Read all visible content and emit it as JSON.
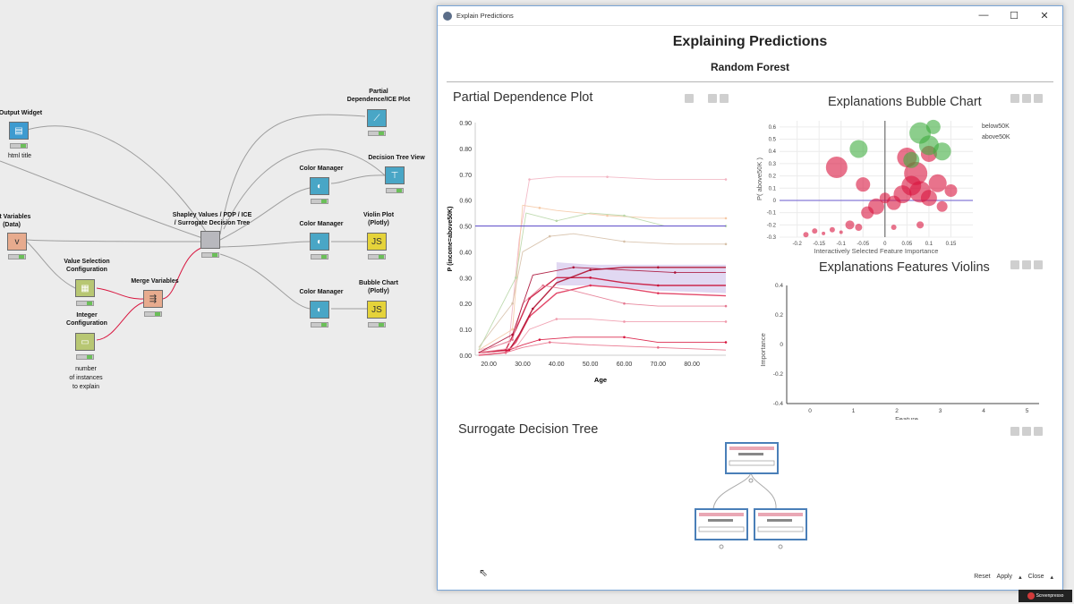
{
  "workflow": {
    "nodes": {
      "output_widget": {
        "label": "Output Widget",
        "sub": "html title"
      },
      "select_variables": {
        "label": "ect Variables\n(Data)"
      },
      "value_selection": {
        "label": "Value Selection\nConfiguration"
      },
      "integer_config": {
        "label": "Integer\nConfiguration",
        "sub": "number\nof instances\nto explain"
      },
      "merge_variables": {
        "label": "Merge Variables"
      },
      "shapley": {
        "label": "Shapley Values / PDP / ICE\n/ Surrogate Decision Tree"
      },
      "pdp_plot": {
        "label": "Partial\nDependence/ICE Plot"
      },
      "color_manager_1": {
        "label": "Color Manager"
      },
      "decision_tree_view": {
        "label": "Decision Tree View"
      },
      "color_manager_2": {
        "label": "Color Manager"
      },
      "violin_plot": {
        "label": "Violin Plot\n(Plotly)"
      },
      "color_manager_3": {
        "label": "Color Manager"
      },
      "bubble_chart": {
        "label": "Bubble Chart\n(Plotly)"
      }
    }
  },
  "dialog": {
    "window_title": "Explain Predictions",
    "title": "Explaining Predictions",
    "subtitle": "Random Forest",
    "controls": {
      "minimize": "—",
      "maximize": "☐",
      "close": "✕"
    },
    "buttons": {
      "reset": "Reset",
      "apply": "Apply",
      "close": "Close"
    }
  },
  "panels": {
    "pdp_title": "Partial Dependence Plot",
    "bubble_title": "Explanations Bubble Chart",
    "violin_title": "Explanations Features Violins",
    "tree_title": "Surrogate Decision Tree"
  },
  "colors": {
    "accent_line": "#6a5acd",
    "above": "#3fae3f",
    "below": "#d8163f"
  },
  "chart_data": [
    {
      "type": "line",
      "title": "Partial Dependence Plot",
      "xlabel": "Age",
      "ylabel": "P (income=above50K)",
      "xlim": [
        16,
        90
      ],
      "ylim": [
        0,
        0.9
      ],
      "xticks": [
        "20.00",
        "30.00",
        "40.00",
        "50.00",
        "60.00",
        "70.00",
        "80.00"
      ],
      "yticks": [
        "0.00",
        "0.10",
        "0.20",
        "0.30",
        "0.40",
        "0.50",
        "0.60",
        "0.70",
        "0.80",
        "0.90"
      ],
      "reference_line": 0.5,
      "series": [
        {
          "values": [
            [
              17,
              0.01
            ],
            [
              25,
              0.02
            ],
            [
              28,
              0.1
            ],
            [
              32,
              0.22
            ],
            [
              40,
              0.3
            ],
            [
              50,
              0.3
            ],
            [
              60,
              0.28
            ],
            [
              70,
              0.27
            ],
            [
              90,
              0.27
            ]
          ]
        },
        {
          "values": [
            [
              17,
              0.0
            ],
            [
              25,
              0.01
            ],
            [
              28,
              0.05
            ],
            [
              32,
              0.15
            ],
            [
              40,
              0.24
            ],
            [
              50,
              0.27
            ],
            [
              60,
              0.26
            ],
            [
              70,
              0.24
            ],
            [
              90,
              0.23
            ]
          ]
        },
        {
          "values": [
            [
              17,
              0.01
            ],
            [
              26,
              0.02
            ],
            [
              29,
              0.08
            ],
            [
              33,
              0.18
            ],
            [
              40,
              0.28
            ],
            [
              50,
              0.33
            ],
            [
              60,
              0.34
            ],
            [
              70,
              0.34
            ],
            [
              90,
              0.34
            ]
          ]
        },
        {
          "values": [
            [
              17,
              0.01
            ],
            [
              26,
              0.02
            ],
            [
              30,
              0.04
            ],
            [
              35,
              0.06
            ],
            [
              45,
              0.07
            ],
            [
              60,
              0.07
            ],
            [
              70,
              0.05
            ],
            [
              90,
              0.05
            ]
          ]
        },
        {
          "values": [
            [
              17,
              0.0
            ],
            [
              25,
              0.01
            ],
            [
              30,
              0.03
            ],
            [
              38,
              0.05
            ],
            [
              50,
              0.04
            ],
            [
              70,
              0.03
            ],
            [
              90,
              0.02
            ]
          ]
        },
        {
          "values": [
            [
              17,
              0.02
            ],
            [
              26,
              0.05
            ],
            [
              29,
              0.45
            ],
            [
              32,
              0.68
            ],
            [
              40,
              0.69
            ],
            [
              55,
              0.69
            ],
            [
              70,
              0.68
            ],
            [
              90,
              0.68
            ]
          ]
        },
        {
          "values": [
            [
              17,
              0.02
            ],
            [
              27,
              0.1
            ],
            [
              30,
              0.58
            ],
            [
              35,
              0.57
            ],
            [
              40,
              0.56
            ],
            [
              55,
              0.54
            ],
            [
              70,
              0.53
            ],
            [
              90,
              0.53
            ]
          ]
        },
        {
          "values": [
            [
              17,
              0.03
            ],
            [
              27,
              0.2
            ],
            [
              30,
              0.4
            ],
            [
              38,
              0.46
            ],
            [
              45,
              0.47
            ],
            [
              60,
              0.44
            ],
            [
              75,
              0.43
            ],
            [
              90,
              0.43
            ]
          ]
        },
        {
          "values": [
            [
              17,
              0.01
            ],
            [
              27,
              0.06
            ],
            [
              30,
              0.2
            ],
            [
              36,
              0.27
            ],
            [
              45,
              0.25
            ],
            [
              60,
              0.2
            ],
            [
              70,
              0.19
            ],
            [
              90,
              0.19
            ]
          ]
        },
        {
          "values": [
            [
              17,
              0.01
            ],
            [
              28,
              0.03
            ],
            [
              32,
              0.1
            ],
            [
              40,
              0.14
            ],
            [
              50,
              0.14
            ],
            [
              60,
              0.13
            ],
            [
              75,
              0.13
            ],
            [
              90,
              0.13
            ]
          ]
        },
        {
          "values": [
            [
              17,
              0.02
            ],
            [
              28,
              0.3
            ],
            [
              31,
              0.55
            ],
            [
              40,
              0.52
            ],
            [
              50,
              0.55
            ],
            [
              60,
              0.54
            ],
            [
              72,
              0.5
            ],
            [
              90,
              0.5
            ]
          ]
        },
        {
          "values": [
            [
              17,
              0.01
            ],
            [
              27,
              0.08
            ],
            [
              33,
              0.31
            ],
            [
              45,
              0.34
            ],
            [
              60,
              0.33
            ],
            [
              75,
              0.32
            ],
            [
              90,
              0.32
            ]
          ]
        }
      ]
    },
    {
      "type": "scatter",
      "title": "Explanations Bubble Chart",
      "xlabel": "Interactively Selected Feature Importance",
      "ylabel": "P( above50K )",
      "xlim": [
        -0.24,
        0.2
      ],
      "ylim": [
        -0.3,
        0.65
      ],
      "xticks": [
        "-0.2",
        "-0.15",
        "-0.1",
        "-0.05",
        "0",
        "0.05",
        "0.1",
        "0.15"
      ],
      "yticks": [
        "-0.3",
        "-0.2",
        "-0.1",
        "0",
        "0.1",
        "0.2",
        "0.3",
        "0.4",
        "0.5",
        "0.6"
      ],
      "legend": [
        "below50K",
        "above50K"
      ],
      "legend_position": "top-right",
      "series": [
        {
          "name": "below50K",
          "points": [
            [
              -0.18,
              -0.28,
              3
            ],
            [
              -0.16,
              -0.25,
              3
            ],
            [
              -0.14,
              -0.27,
              2
            ],
            [
              -0.12,
              -0.24,
              3
            ],
            [
              -0.1,
              -0.26,
              2
            ],
            [
              -0.08,
              -0.2,
              5
            ],
            [
              -0.06,
              -0.22,
              4
            ],
            [
              -0.04,
              -0.1,
              7
            ],
            [
              -0.02,
              -0.05,
              9
            ],
            [
              0.0,
              0.02,
              6
            ],
            [
              0.02,
              -0.02,
              8
            ],
            [
              0.04,
              0.05,
              10
            ],
            [
              0.06,
              0.12,
              11
            ],
            [
              0.08,
              0.07,
              12
            ],
            [
              0.1,
              0.02,
              9
            ],
            [
              0.12,
              0.14,
              10
            ],
            [
              0.07,
              0.22,
              13
            ],
            [
              0.05,
              0.35,
              11
            ],
            [
              -0.11,
              0.27,
              12
            ],
            [
              -0.05,
              0.13,
              8
            ],
            [
              0.1,
              0.38,
              9
            ],
            [
              0.13,
              -0.05,
              6
            ],
            [
              0.15,
              0.08,
              7
            ],
            [
              0.02,
              -0.22,
              3
            ],
            [
              0.08,
              -0.2,
              4
            ]
          ]
        },
        {
          "name": "above50K",
          "points": [
            [
              -0.06,
              0.42,
              10
            ],
            [
              0.08,
              0.55,
              12
            ],
            [
              0.1,
              0.45,
              11
            ],
            [
              0.13,
              0.4,
              10
            ],
            [
              0.06,
              0.33,
              9
            ],
            [
              0.11,
              0.6,
              8
            ]
          ]
        }
      ]
    },
    {
      "type": "table",
      "title": "Explanations Features Violins",
      "xlabel": "Feature",
      "ylabel": "Importance",
      "xticks": [
        "0",
        "1",
        "2",
        "3",
        "4",
        "5"
      ],
      "yticks": [
        "-0.4",
        "-0.2",
        "0",
        "0.2",
        "0.4"
      ],
      "values": []
    }
  ]
}
